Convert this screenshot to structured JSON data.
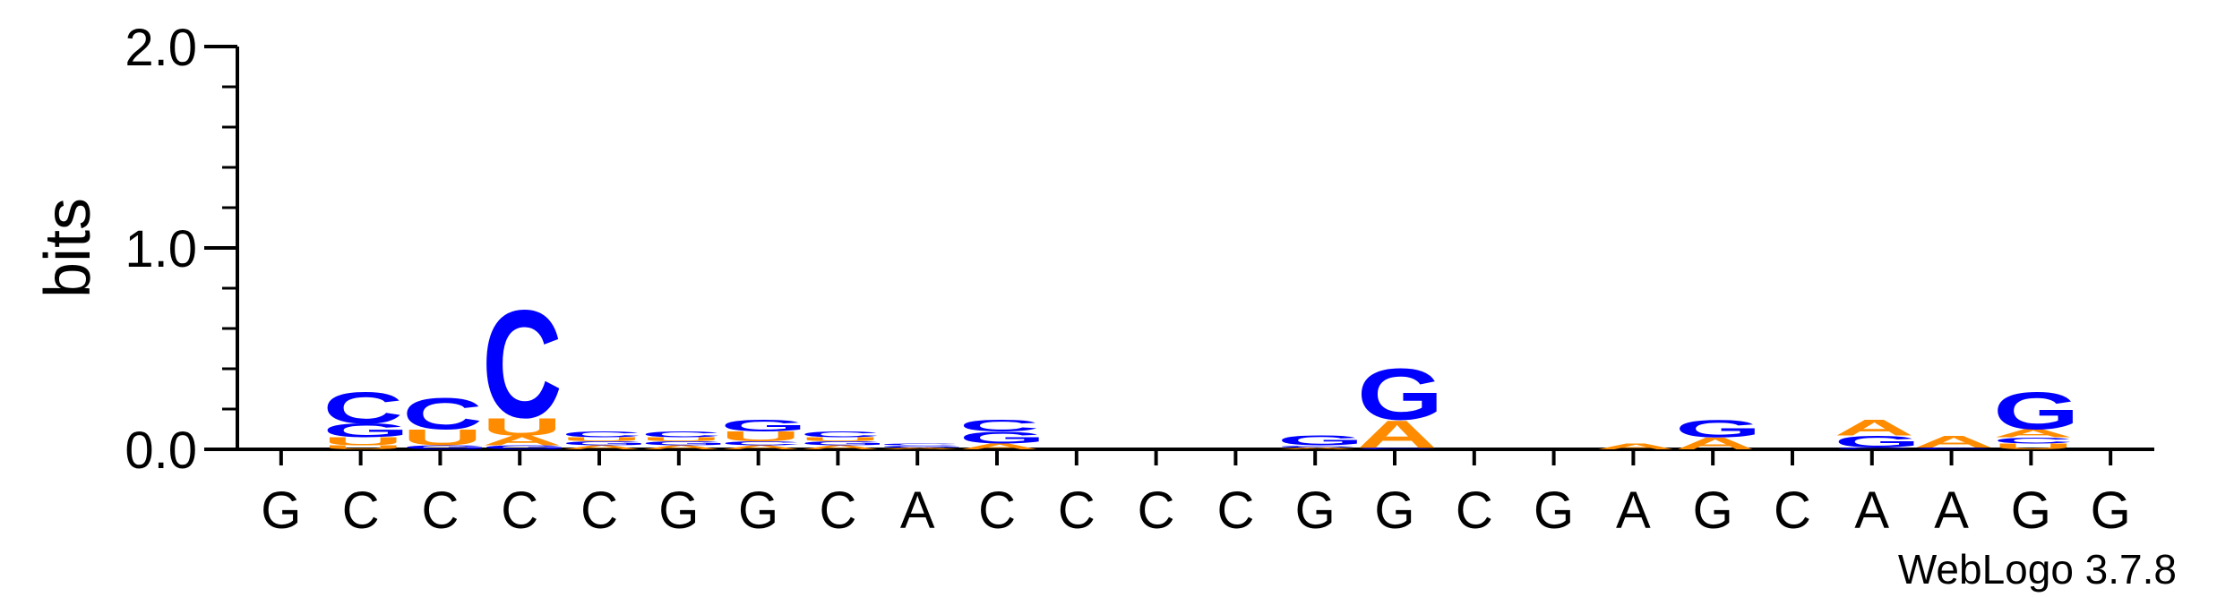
{
  "chart_data": {
    "type": "sequence-logo",
    "ylabel": "bits",
    "ylim": [
      0,
      2.0
    ],
    "y_ticks": [
      "0.0",
      "1.0",
      "2.0"
    ],
    "credit": "WebLogo 3.7.8",
    "colors": {
      "A": "#ff8c00",
      "C": "#0000ff",
      "G": "#0000ff",
      "U": "#ff8c00"
    },
    "positions": [
      {
        "label": "G",
        "stack": []
      },
      {
        "label": "C",
        "stack": [
          [
            "U",
            0.02
          ],
          [
            "U",
            0.04
          ],
          [
            "G",
            0.07
          ],
          [
            "C",
            0.16
          ]
        ]
      },
      {
        "label": "C",
        "stack": [
          [
            "G",
            0.02
          ],
          [
            "U",
            0.08
          ],
          [
            "C",
            0.16
          ]
        ]
      },
      {
        "label": "C",
        "stack": [
          [
            "G",
            0.02
          ],
          [
            "A",
            0.05
          ],
          [
            "U",
            0.09
          ],
          [
            "C",
            0.55
          ]
        ]
      },
      {
        "label": "C",
        "stack": [
          [
            "A",
            0.02
          ],
          [
            "G",
            0.02
          ],
          [
            "U",
            0.02
          ],
          [
            "C",
            0.03
          ]
        ]
      },
      {
        "label": "G",
        "stack": [
          [
            "A",
            0.02
          ],
          [
            "G",
            0.02
          ],
          [
            "U",
            0.02
          ],
          [
            "C",
            0.03
          ]
        ]
      },
      {
        "label": "G",
        "stack": [
          [
            "A",
            0.02
          ],
          [
            "C",
            0.02
          ],
          [
            "U",
            0.05
          ],
          [
            "G",
            0.06
          ]
        ]
      },
      {
        "label": "C",
        "stack": [
          [
            "A",
            0.02
          ],
          [
            "G",
            0.02
          ],
          [
            "U",
            0.02
          ],
          [
            "C",
            0.03
          ]
        ]
      },
      {
        "label": "A",
        "stack": [
          [
            "A",
            0.01
          ],
          [
            "G",
            0.01
          ],
          [
            "C",
            0.01
          ]
        ]
      },
      {
        "label": "C",
        "stack": [
          [
            "A",
            0.03
          ],
          [
            "G",
            0.06
          ],
          [
            "C",
            0.06
          ]
        ]
      },
      {
        "label": "C",
        "stack": []
      },
      {
        "label": "C",
        "stack": []
      },
      {
        "label": "C",
        "stack": []
      },
      {
        "label": "G",
        "stack": [
          [
            "A",
            0.01
          ],
          [
            "C",
            0.01
          ],
          [
            "G",
            0.05
          ]
        ]
      },
      {
        "label": "G",
        "stack": [
          [
            "C",
            0.01
          ],
          [
            "A",
            0.14
          ],
          [
            "G",
            0.26
          ]
        ]
      },
      {
        "label": "C",
        "stack": []
      },
      {
        "label": "G",
        "stack": []
      },
      {
        "label": "A",
        "stack": [
          [
            "A",
            0.03
          ]
        ]
      },
      {
        "label": "G",
        "stack": [
          [
            "A",
            0.06
          ],
          [
            "G",
            0.09
          ]
        ]
      },
      {
        "label": "C",
        "stack": []
      },
      {
        "label": "A",
        "stack": [
          [
            "C",
            0.01
          ],
          [
            "G",
            0.06
          ],
          [
            "A",
            0.08
          ]
        ]
      },
      {
        "label": "A",
        "stack": [
          [
            "C",
            0.01
          ],
          [
            "A",
            0.06
          ]
        ]
      },
      {
        "label": "G",
        "stack": [
          [
            "U",
            0.03
          ],
          [
            "C",
            0.03
          ],
          [
            "A",
            0.04
          ],
          [
            "G",
            0.19
          ]
        ]
      },
      {
        "label": "G",
        "stack": []
      }
    ]
  }
}
